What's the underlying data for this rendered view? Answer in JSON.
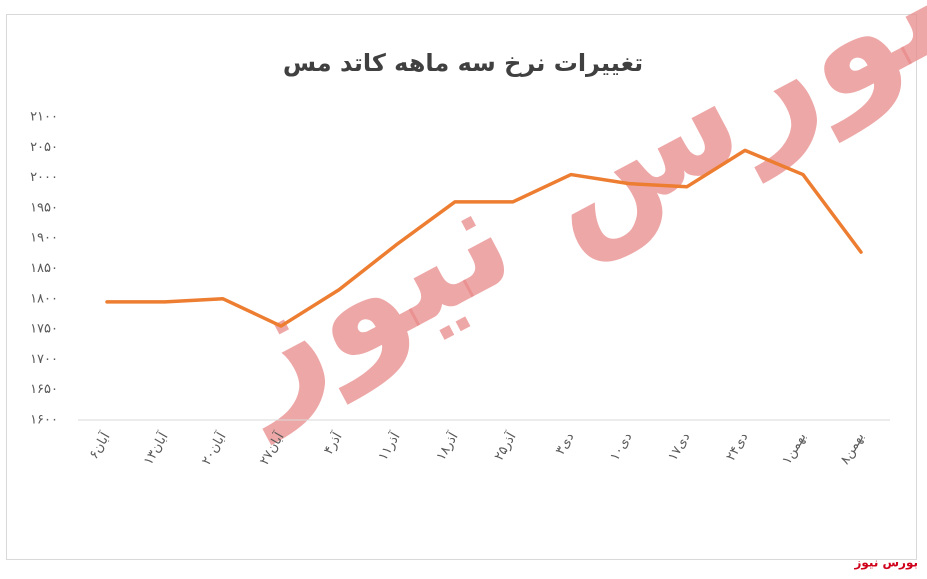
{
  "chart_data": {
    "type": "line",
    "title": "تغییرات نرخ سه ماهه کاتد مس",
    "categories": [
      "۶آبان",
      "۱۳آبان",
      "۲۰آبان",
      "۲۷آبان",
      "۴آذر",
      "۱۱آذر",
      "۱۸آذر",
      "۲۵آذر",
      "۳دی",
      "۱۰دی",
      "۱۷دی",
      "۲۴دی",
      "۱بهمن",
      "۸بهمن"
    ],
    "values": [
      1795,
      1795,
      1800,
      1755,
      1815,
      1890,
      1960,
      1960,
      2005,
      1990,
      1985,
      2045,
      2005,
      1877
    ],
    "color": "#ed7d31",
    "ylim": [
      1600,
      2100
    ],
    "yticks": [
      {
        "value": 1600,
        "label": "۱۶۰۰"
      },
      {
        "value": 1650,
        "label": "۱۶۵۰"
      },
      {
        "value": 1700,
        "label": "۱۷۰۰"
      },
      {
        "value": 1750,
        "label": "۱۷۵۰"
      },
      {
        "value": 1800,
        "label": "۱۸۰۰"
      },
      {
        "value": 1850,
        "label": "۱۸۵۰"
      },
      {
        "value": 1900,
        "label": "۱۹۰۰"
      },
      {
        "value": 1950,
        "label": "۱۹۵۰"
      },
      {
        "value": 2000,
        "label": "۲۰۰۰"
      },
      {
        "value": 2050,
        "label": "۲۰۵۰"
      },
      {
        "value": 2100,
        "label": "۲۱۰۰"
      }
    ],
    "grid": false,
    "watermark": "بورس نیوز",
    "source": "بورس نیوز"
  }
}
